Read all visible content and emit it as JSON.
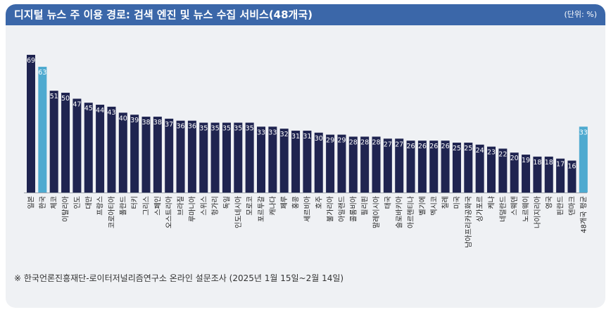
{
  "header": {
    "title": "디지털 뉴스 주 이용 경로: 검색 엔진 및 뉴스 수집 서비스(48개국)",
    "unit": "(단위: %)"
  },
  "footnote": "※ 한국언론진흥재단-로이터저널리즘연구소 온라인 설문조사 (2025년 1월 15일~2월 14일)",
  "colors": {
    "header": "#3b67a9",
    "bar": "#1f2450",
    "highlight": "#4eaad0",
    "background": "#eff1f4"
  },
  "chart_data": {
    "type": "bar",
    "title": "디지털 뉴스 주 이용 경로: 검색 엔진 및 뉴스 수집 서비스(48개국)",
    "ylabel": "",
    "xlabel": "",
    "unit": "%",
    "ylim": [
      0,
      70
    ],
    "grid": false,
    "categories": [
      "일본",
      "한국",
      "체코",
      "이탈리아",
      "인도",
      "대만",
      "프랑스",
      "코로아티아",
      "폴란드",
      "터키",
      "그리스",
      "스페인",
      "오스트리아",
      "브라질",
      "루마니아",
      "스위스",
      "헝가리",
      "독일",
      "인도네시아",
      "모로코",
      "포르투갈",
      "캐나다",
      "페루",
      "홍콩",
      "세르비아",
      "호주",
      "불가리아",
      "아일랜드",
      "콜롬비아",
      "필리핀",
      "말레이시아",
      "태국",
      "슬로바키아",
      "아르헨티나",
      "벨기에",
      "멕시코",
      "칠레",
      "미국",
      "남아프리카공화국",
      "싱가포르",
      "케냐",
      "네덜란드",
      "스웨덴",
      "노르웨이",
      "나이지리아",
      "영국",
      "핀란드",
      "덴마크",
      "48개국 평균"
    ],
    "values": [
      69,
      63,
      51,
      50,
      47,
      45,
      44,
      43,
      40,
      39,
      38,
      38,
      37,
      36,
      36,
      35,
      35,
      35,
      35,
      35,
      33,
      33,
      32,
      31,
      31,
      30,
      29,
      29,
      28,
      28,
      28,
      27,
      27,
      26,
      26,
      26,
      26,
      25,
      25,
      24,
      23,
      22,
      20,
      19,
      18,
      18,
      17,
      16,
      33
    ],
    "highlighted": [
      "한국",
      "48개국 평균"
    ]
  }
}
